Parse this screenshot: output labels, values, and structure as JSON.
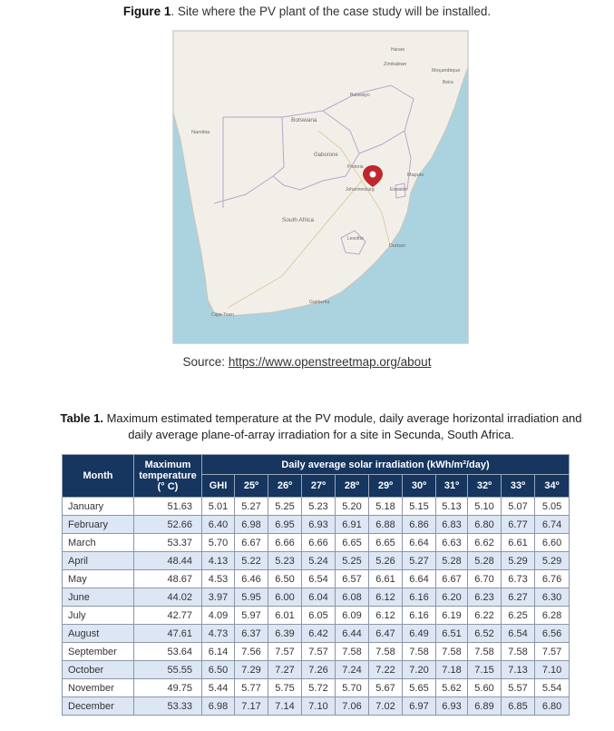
{
  "figure": {
    "label": "Figure 1",
    "caption": ". Site where the PV plant of the case study will be installed."
  },
  "map": {
    "labels": {
      "botswana": "Botswana",
      "south_africa": "South Africa",
      "gaborone": "Gaborone",
      "pretoria": "Pretoria",
      "johannesburg": "Johannesburg",
      "maputo": "Maputo",
      "eswatini": "Eswatini",
      "lesotho": "Lesotho",
      "durban": "Durban",
      "cape_town": "Cape Town",
      "namibia": "Namibia",
      "zimbabwe": "Zimbabwe",
      "mozambique": "Moçambique",
      "bulawayo": "Bulawayo",
      "harare": "Harare",
      "beira": "Beira",
      "gqeberha": "Gqeberha"
    },
    "water_color": "#aad3df",
    "land_color": "#f2efe9",
    "marker_color": "#c0272d"
  },
  "source": {
    "prefix": "Source: ",
    "link": "https://www.openstreetmap.org/about"
  },
  "table_caption": {
    "label": "Table 1.",
    "text": " Maximum estimated temperature at the PV module, daily average horizontal irradiation and daily average plane-of-array irradiation for a site in Secunda, South Africa."
  },
  "table": {
    "header": {
      "month": "Month",
      "temp": "Maximum temperature (° C)",
      "irr_group": "Daily average solar irradiation (kWh/m²/day)",
      "cols": [
        "GHI",
        "25º",
        "26º",
        "27º",
        "28º",
        "29º",
        "30º",
        "31º",
        "32º",
        "33º",
        "34º"
      ]
    },
    "rows": [
      {
        "month": "January",
        "temp": "51.63",
        "v": [
          "5.01",
          "5.27",
          "5.25",
          "5.23",
          "5.20",
          "5.18",
          "5.15",
          "5.13",
          "5.10",
          "5.07",
          "5.05"
        ]
      },
      {
        "month": "February",
        "temp": "52.66",
        "v": [
          "6.40",
          "6.98",
          "6.95",
          "6.93",
          "6.91",
          "6.88",
          "6.86",
          "6.83",
          "6.80",
          "6.77",
          "6.74"
        ]
      },
      {
        "month": "March",
        "temp": "53.37",
        "v": [
          "5.70",
          "6.67",
          "6.66",
          "6.66",
          "6.65",
          "6.65",
          "6.64",
          "6.63",
          "6.62",
          "6.61",
          "6.60"
        ]
      },
      {
        "month": "April",
        "temp": "48.44",
        "v": [
          "4.13",
          "5.22",
          "5.23",
          "5.24",
          "5.25",
          "5.26",
          "5.27",
          "5.28",
          "5.28",
          "5.29",
          "5.29"
        ]
      },
      {
        "month": "May",
        "temp": "48.67",
        "v": [
          "4.53",
          "6.46",
          "6.50",
          "6.54",
          "6.57",
          "6.61",
          "6.64",
          "6.67",
          "6.70",
          "6.73",
          "6.76"
        ]
      },
      {
        "month": "June",
        "temp": "44.02",
        "v": [
          "3.97",
          "5.95",
          "6.00",
          "6.04",
          "6.08",
          "6.12",
          "6.16",
          "6.20",
          "6.23",
          "6.27",
          "6.30"
        ]
      },
      {
        "month": "July",
        "temp": "42.77",
        "v": [
          "4.09",
          "5.97",
          "6.01",
          "6.05",
          "6.09",
          "6.12",
          "6.16",
          "6.19",
          "6.22",
          "6.25",
          "6.28"
        ]
      },
      {
        "month": "August",
        "temp": "47.61",
        "v": [
          "4.73",
          "6.37",
          "6.39",
          "6.42",
          "6.44",
          "6.47",
          "6.49",
          "6.51",
          "6.52",
          "6.54",
          "6.56"
        ]
      },
      {
        "month": "September",
        "temp": "53.64",
        "v": [
          "6.14",
          "7.56",
          "7.57",
          "7.57",
          "7.58",
          "7.58",
          "7.58",
          "7.58",
          "7.58",
          "7.58",
          "7.57"
        ]
      },
      {
        "month": "October",
        "temp": "55.55",
        "v": [
          "6.50",
          "7.29",
          "7.27",
          "7.26",
          "7.24",
          "7.22",
          "7.20",
          "7.18",
          "7.15",
          "7.13",
          "7.10"
        ]
      },
      {
        "month": "November",
        "temp": "49.75",
        "v": [
          "5.44",
          "5.77",
          "5.75",
          "5.72",
          "5.70",
          "5.67",
          "5.65",
          "5.62",
          "5.60",
          "5.57",
          "5.54"
        ]
      },
      {
        "month": "December",
        "temp": "53.33",
        "v": [
          "6.98",
          "7.17",
          "7.14",
          "7.10",
          "7.06",
          "7.02",
          "6.97",
          "6.93",
          "6.89",
          "6.85",
          "6.80"
        ]
      }
    ]
  }
}
